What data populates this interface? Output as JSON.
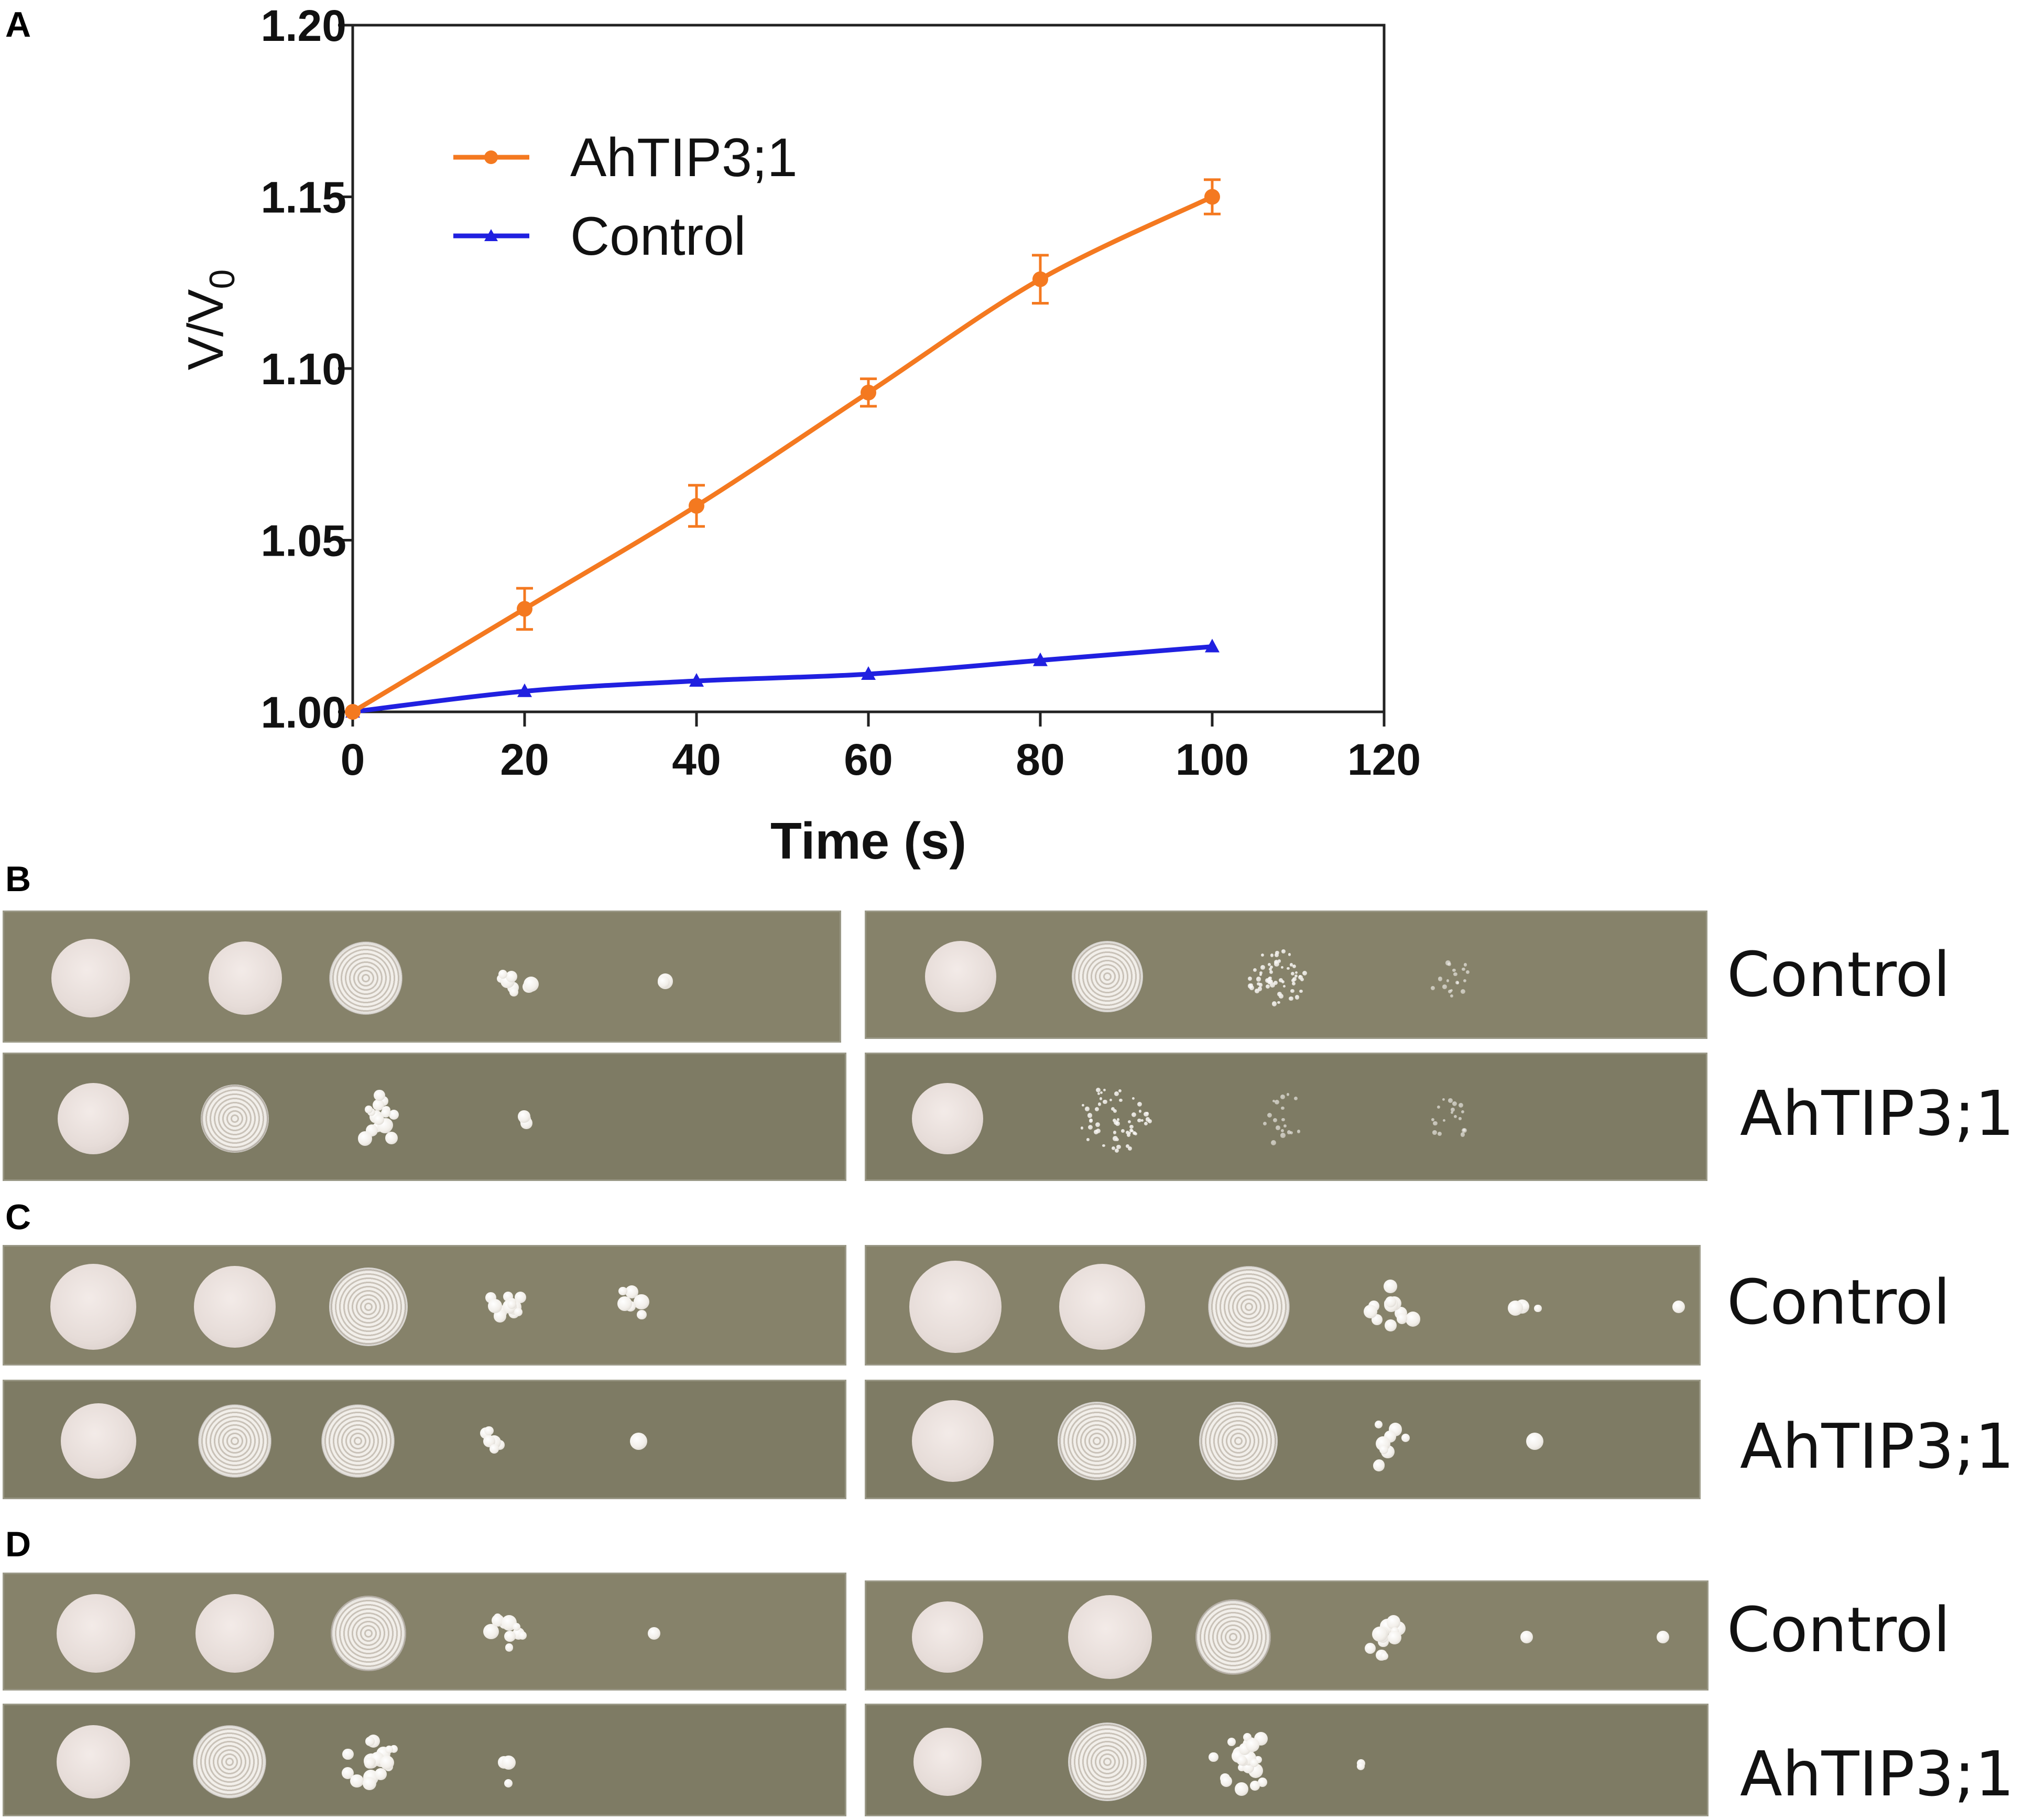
{
  "panels": {
    "A": "A",
    "B": "B",
    "C": "C",
    "D": "D"
  },
  "chart_data": {
    "type": "line",
    "xlabel": "Time (s)",
    "ylabel": "V/V",
    "ylabel_subscript": "0",
    "xlim": [
      0,
      120
    ],
    "ylim": [
      1.0,
      1.2
    ],
    "xticks": [
      "0",
      "20",
      "40",
      "60",
      "80",
      "100",
      "120"
    ],
    "yticks": [
      "1.00",
      "1.05",
      "1.10",
      "1.15",
      "1.20"
    ],
    "legend_position": "top-left",
    "series": [
      {
        "name": "AhTIP3;1",
        "color": "#f47920",
        "marker": "circle",
        "x": [
          0,
          20,
          40,
          60,
          80,
          100
        ],
        "y": [
          1.0,
          1.03,
          1.06,
          1.093,
          1.126,
          1.15
        ],
        "err": [
          0,
          0.006,
          0.006,
          0.004,
          0.007,
          0.005
        ]
      },
      {
        "name": "Control",
        "color": "#2020e0",
        "marker": "triangle",
        "x": [
          0,
          20,
          40,
          60,
          80,
          100
        ],
        "y": [
          1.0,
          1.006,
          1.009,
          1.011,
          1.015,
          1.019
        ],
        "err": [
          0,
          0,
          0,
          0,
          0,
          0
        ]
      }
    ]
  },
  "plate_rows": [
    {
      "panel": "B",
      "label": "Control"
    },
    {
      "panel": "B",
      "label": "AhTIP3;1"
    },
    {
      "panel": "C",
      "label": "Control"
    },
    {
      "panel": "C",
      "label": "AhTIP3;1"
    },
    {
      "panel": "D",
      "label": "Control"
    },
    {
      "panel": "D",
      "label": "AhTIP3;1"
    }
  ]
}
